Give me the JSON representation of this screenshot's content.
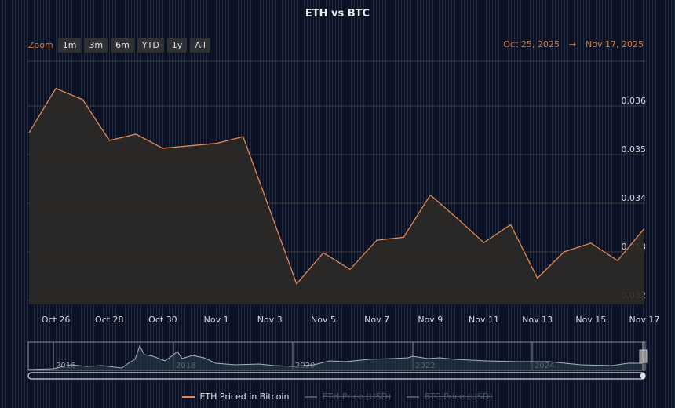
{
  "chart": {
    "title": "ETH vs BTC",
    "zoom_label": "Zoom",
    "zoom_buttons": [
      "1m",
      "3m",
      "6m",
      "YTD",
      "1y",
      "All"
    ],
    "range_from": "Oct 25, 2025",
    "range_to": "Nov 17, 2025",
    "range_separator": "→",
    "accent_color": "#e08a56",
    "legend": [
      {
        "label": "ETH Priced in Bitcoin",
        "color": "#e08a56",
        "visible": true
      },
      {
        "label": "ETH Price (USD)",
        "color": "#4a5565",
        "visible": false
      },
      {
        "label": "BTC Price (USD)",
        "color": "#4a5565",
        "visible": false
      }
    ],
    "navigator_years": [
      "2016",
      "2018",
      "2020",
      "2022",
      "2024"
    ]
  },
  "chart_data": {
    "type": "area",
    "title": "ETH vs BTC",
    "xlabel": "",
    "ylabel": "",
    "ylim": [
      0.032,
      0.0368
    ],
    "y_ticks": [
      0.032,
      0.033,
      0.034,
      0.035,
      0.036
    ],
    "x_tick_labels": [
      "Oct 26",
      "Oct 28",
      "Oct 30",
      "Nov 1",
      "Nov 3",
      "Nov 5",
      "Nov 7",
      "Nov 9",
      "Nov 11",
      "Nov 13",
      "Nov 15",
      "Nov 17"
    ],
    "grid": true,
    "legend_position": "bottom",
    "categories": [
      "Oct 25",
      "Oct 26",
      "Oct 27",
      "Oct 28",
      "Oct 29",
      "Oct 30",
      "Oct 31",
      "Nov 1",
      "Nov 2",
      "Nov 3",
      "Nov 4",
      "Nov 5",
      "Nov 6",
      "Nov 7",
      "Nov 8",
      "Nov 9",
      "Nov 10",
      "Nov 11",
      "Nov 12",
      "Nov 13",
      "Nov 14",
      "Nov 15",
      "Nov 16",
      "Nov 17"
    ],
    "series": [
      {
        "name": "ETH Priced in Bitcoin",
        "values": [
          0.03545,
          0.03636,
          0.03613,
          0.03529,
          0.03542,
          0.03513,
          0.03518,
          0.03523,
          0.03537,
          0.03386,
          0.03234,
          0.03298,
          0.03264,
          0.03324,
          0.0333,
          0.03417,
          0.03369,
          0.03319,
          0.03356,
          0.03246,
          0.033,
          0.03318,
          0.03282,
          0.03348
        ]
      }
    ]
  }
}
